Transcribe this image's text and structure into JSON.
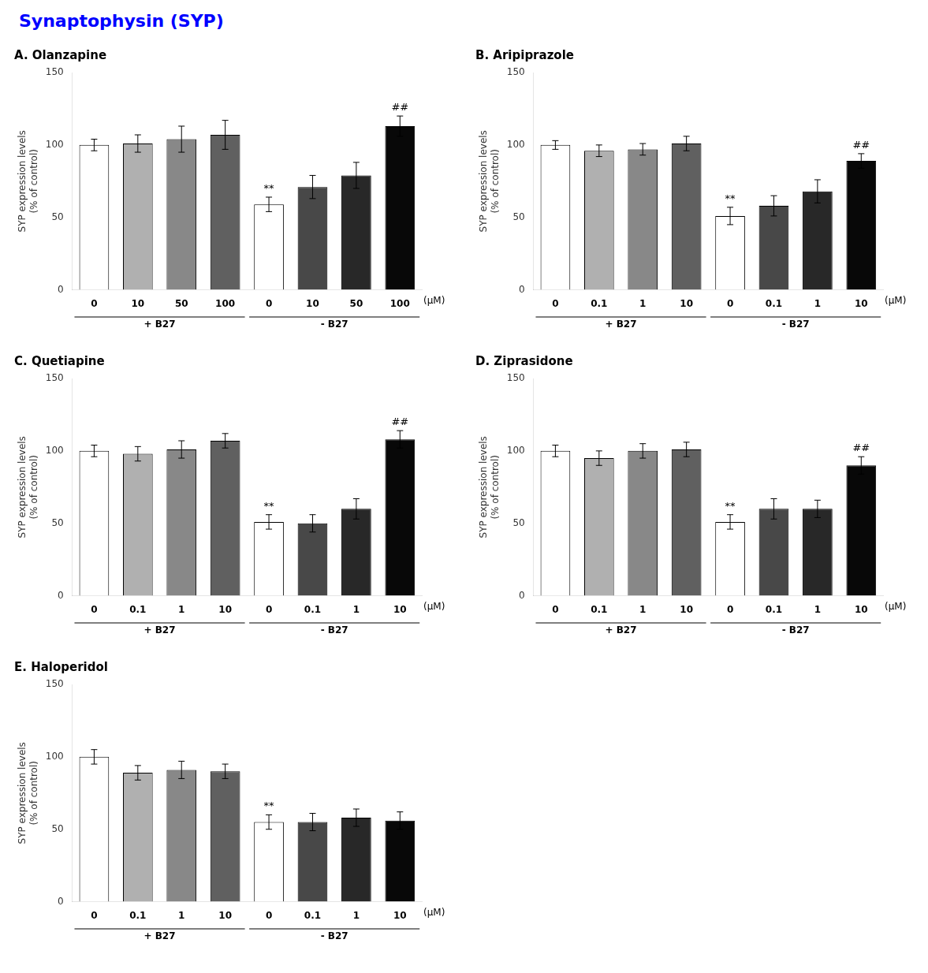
{
  "title": "Synaptophysin  (SYP)",
  "color": "blue",
  "chart_data": [
    {
      "type": "bar",
      "title": "A. Olanzapine",
      "categories": [
        "0",
        "10",
        "50",
        "100",
        "0",
        "10",
        "50",
        "100"
      ],
      "values": [
        100,
        101,
        104,
        107,
        59,
        71,
        79,
        113
      ],
      "errors": [
        4,
        6,
        9,
        10,
        5,
        8,
        9,
        7
      ],
      "colors": [
        "white",
        "#b0b0b0",
        "#888888",
        "#606060",
        "white",
        "#484848",
        "#282828",
        "#080808"
      ],
      "annotations": [
        {
          "index": 4,
          "text": "**"
        },
        {
          "index": 7,
          "text": "##"
        }
      ],
      "groups": [
        {
          "name": "+ B27",
          "size": 4
        },
        {
          "name": "- B27",
          "size": 4
        }
      ],
      "xlabel": "(μM)",
      "ylabel": "SYP expression levels\n(% of control)",
      "ylim": [
        0,
        150
      ],
      "yticks": [
        0,
        50,
        100,
        150
      ],
      "grid": false
    },
    {
      "type": "bar",
      "title": "B. Aripiprazole",
      "categories": [
        "0",
        "0.1",
        "1",
        "10",
        "0",
        "0.1",
        "1",
        "10"
      ],
      "values": [
        100,
        96,
        97,
        101,
        51,
        58,
        68,
        89
      ],
      "errors": [
        3,
        4,
        4,
        5,
        6,
        7,
        8,
        5
      ],
      "colors": [
        "white",
        "#b0b0b0",
        "#888888",
        "#606060",
        "white",
        "#484848",
        "#282828",
        "#080808"
      ],
      "annotations": [
        {
          "index": 4,
          "text": "**"
        },
        {
          "index": 7,
          "text": "##"
        }
      ],
      "groups": [
        {
          "name": "+ B27",
          "size": 4
        },
        {
          "name": "- B27",
          "size": 4
        }
      ],
      "xlabel": "(μM)",
      "ylabel": "SYP expression levels\n(% of control)",
      "ylim": [
        0,
        150
      ],
      "yticks": [
        0,
        50,
        100,
        150
      ],
      "grid": false
    },
    {
      "type": "bar",
      "title": "C. Quetiapine",
      "categories": [
        "0",
        "0.1",
        "1",
        "10",
        "0",
        "0.1",
        "1",
        "10"
      ],
      "values": [
        100,
        98,
        101,
        107,
        51,
        50,
        60,
        108
      ],
      "errors": [
        4,
        5,
        6,
        5,
        5,
        6,
        7,
        6
      ],
      "colors": [
        "white",
        "#b0b0b0",
        "#888888",
        "#606060",
        "white",
        "#484848",
        "#282828",
        "#080808"
      ],
      "annotations": [
        {
          "index": 4,
          "text": "**"
        },
        {
          "index": 7,
          "text": "##"
        }
      ],
      "groups": [
        {
          "name": "+ B27",
          "size": 4
        },
        {
          "name": "- B27",
          "size": 4
        }
      ],
      "xlabel": "(μM)",
      "ylabel": "SYP expression levels\n(% of control)",
      "ylim": [
        0,
        150
      ],
      "yticks": [
        0,
        50,
        100,
        150
      ],
      "grid": false
    },
    {
      "type": "bar",
      "title": "D. Ziprasidone",
      "categories": [
        "0",
        "0.1",
        "1",
        "10",
        "0",
        "0.1",
        "1",
        "10"
      ],
      "values": [
        100,
        95,
        100,
        101,
        51,
        60,
        60,
        90
      ],
      "errors": [
        4,
        5,
        5,
        5,
        5,
        7,
        6,
        6
      ],
      "colors": [
        "white",
        "#b0b0b0",
        "#888888",
        "#606060",
        "white",
        "#484848",
        "#282828",
        "#080808"
      ],
      "annotations": [
        {
          "index": 4,
          "text": "**"
        },
        {
          "index": 7,
          "text": "##"
        }
      ],
      "groups": [
        {
          "name": "+ B27",
          "size": 4
        },
        {
          "name": "- B27",
          "size": 4
        }
      ],
      "xlabel": "(μM)",
      "ylabel": "SYP expression levels\n(% of control)",
      "ylim": [
        0,
        150
      ],
      "yticks": [
        0,
        50,
        100,
        150
      ],
      "grid": false
    },
    {
      "type": "bar",
      "title": "E. Haloperidol",
      "categories": [
        "0",
        "0.1",
        "1",
        "10",
        "0",
        "0.1",
        "1",
        "10"
      ],
      "values": [
        100,
        89,
        91,
        90,
        55,
        55,
        58,
        56
      ],
      "errors": [
        5,
        5,
        6,
        5,
        5,
        6,
        6,
        6
      ],
      "colors": [
        "white",
        "#b0b0b0",
        "#888888",
        "#606060",
        "white",
        "#484848",
        "#282828",
        "#080808"
      ],
      "annotations": [
        {
          "index": 4,
          "text": "**"
        }
      ],
      "groups": [
        {
          "name": "+ B27",
          "size": 4
        },
        {
          "name": "- B27",
          "size": 4
        }
      ],
      "xlabel": "(μM)",
      "ylabel": "SYP expression levels\n(% of control)",
      "ylim": [
        0,
        150
      ],
      "yticks": [
        0,
        50,
        100,
        150
      ],
      "grid": false
    }
  ]
}
